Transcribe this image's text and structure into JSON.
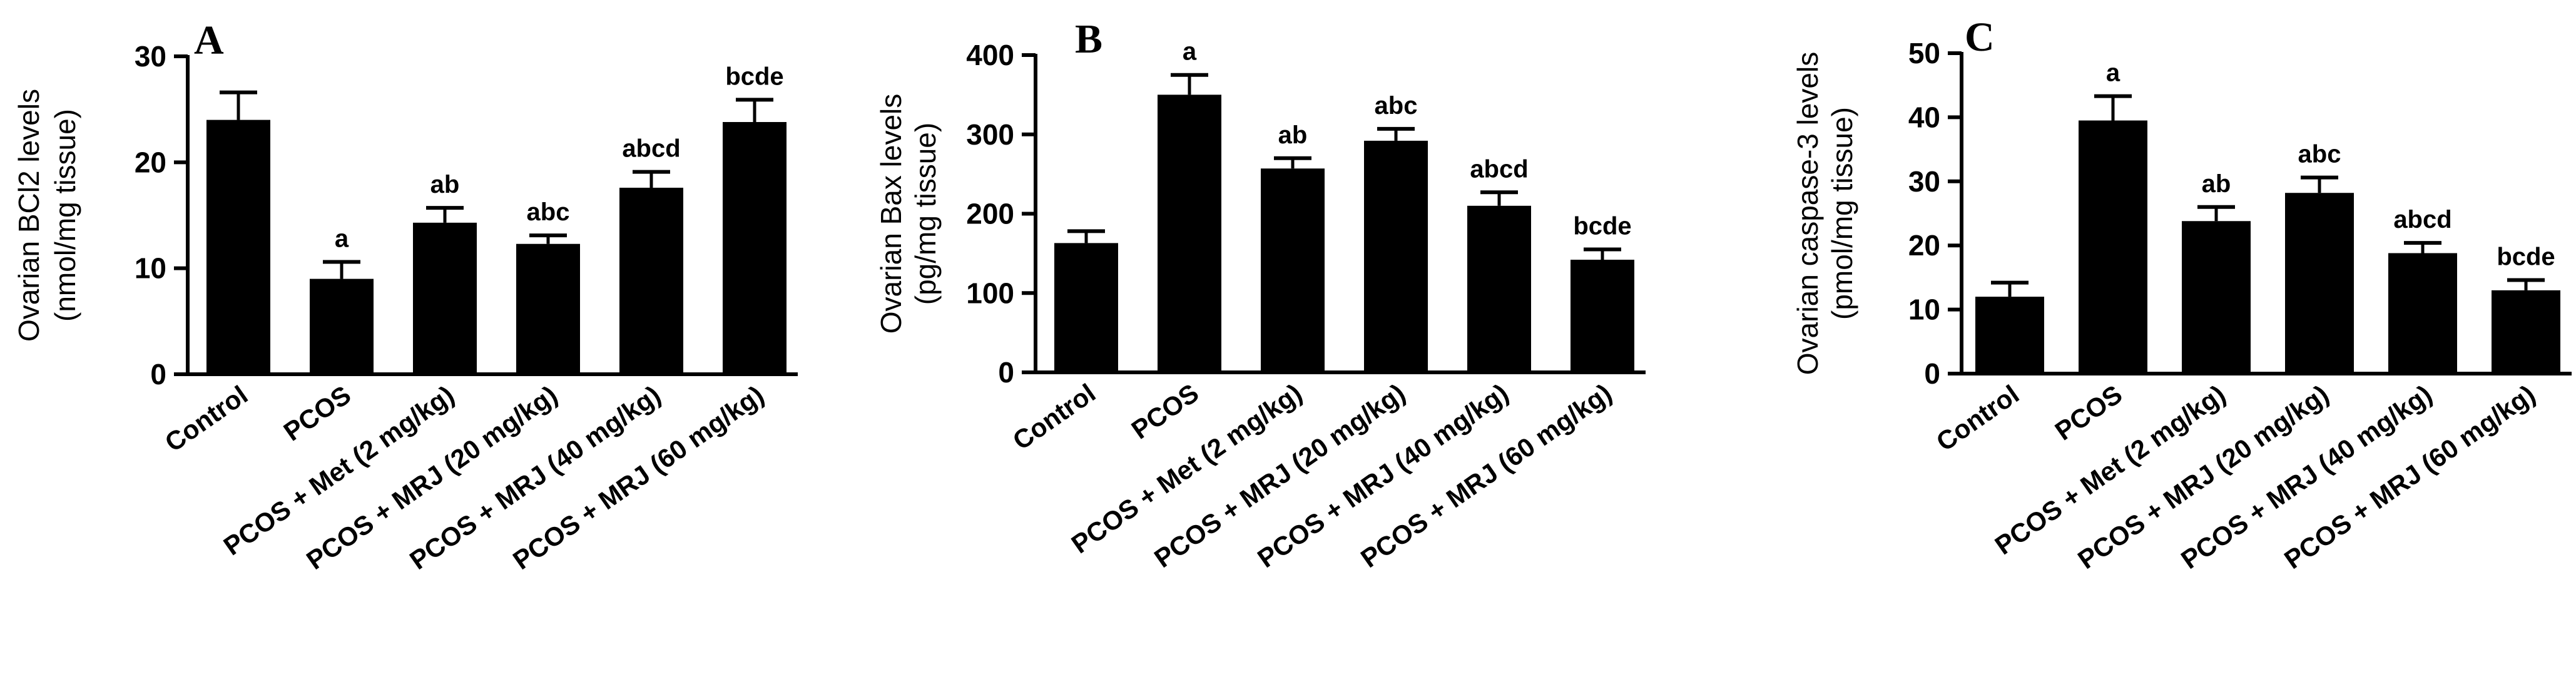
{
  "chart_data": [
    {
      "type": "bar",
      "panel": "A",
      "ylabel_line1": "Ovarian BCl2 levels",
      "ylabel_line2": "(nmol/mg tissue)",
      "ylim": [
        0,
        30
      ],
      "yticks": [
        0,
        10,
        20,
        30
      ],
      "categories": [
        "Control",
        "PCOS",
        "PCOS + Met (2 mg/kg)",
        "PCOS + MRJ (20 mg/kg)",
        "PCOS + MRJ (40 mg/kg)",
        "PCOS + MRJ (60 mg/kg)"
      ],
      "values": [
        24,
        9,
        14.3,
        12.3,
        17.6,
        23.8
      ],
      "errors": [
        2.6,
        1.6,
        1.4,
        0.8,
        1.5,
        2.1
      ],
      "significance": [
        "",
        "a",
        "ab",
        "abc",
        "abcd",
        "bcde"
      ],
      "bar_color": "#000000"
    },
    {
      "type": "bar",
      "panel": "B",
      "ylabel_line1": "Ovarian Bax levels",
      "ylabel_line2": "(pg/mg tissue)",
      "ylim": [
        0,
        400
      ],
      "yticks": [
        0,
        100,
        200,
        300,
        400
      ],
      "categories": [
        "Control",
        "PCOS",
        "PCOS + Met (2 mg/kg)",
        "PCOS + MRJ (20 mg/kg)",
        "PCOS + MRJ (40 mg/kg)",
        "PCOS + MRJ (60 mg/kg)"
      ],
      "values": [
        163,
        350,
        257,
        292,
        210,
        142
      ],
      "errors": [
        15,
        25,
        13,
        15,
        17,
        13
      ],
      "significance": [
        "",
        "a",
        "ab",
        "abc",
        "abcd",
        "bcde"
      ],
      "bar_color": "#000000"
    },
    {
      "type": "bar",
      "panel": "C",
      "ylabel_line1": "Ovarian caspase-3 levels",
      "ylabel_line2": "(pmol/mg tissue)",
      "ylim": [
        0,
        50
      ],
      "yticks": [
        0,
        10,
        20,
        30,
        40,
        50
      ],
      "categories": [
        "Control",
        "PCOS",
        "PCOS + Met (2 mg/kg)",
        "PCOS + MRJ (20 mg/kg)",
        "PCOS + MRJ (40 mg/kg)",
        "PCOS + MRJ (60 mg/kg)"
      ],
      "values": [
        12,
        39.5,
        23.8,
        28.2,
        18.8,
        13
      ],
      "errors": [
        2.2,
        3.8,
        2.2,
        2.4,
        1.6,
        1.6
      ],
      "significance": [
        "",
        "a",
        "ab",
        "abc",
        "abcd",
        "bcde"
      ],
      "bar_color": "#000000"
    }
  ]
}
